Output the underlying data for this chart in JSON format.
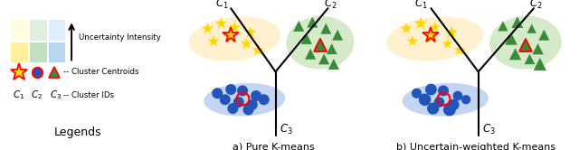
{
  "star_color": "#ffd700",
  "triangle_color": "#3a8a3a",
  "circle_color": "#2255bb",
  "c1_fill": "#ffd98060",
  "c2_fill": "#90c97060",
  "c3_fill": "#6090e060",
  "title_a": "a) Pure K-means",
  "title_b": "b) Uncertain-weighted K-means",
  "legend_title": "Legends",
  "uncertainty_label": "Uncertainty Intensity",
  "centroid_label": "-- Cluster Centroids",
  "clusterid_label": "-- Cluster IDs",
  "sq_colors": [
    [
      "#fffde0",
      "#dff0df",
      "#ddeeff"
    ],
    [
      "#fff0a0",
      "#c0e0c0",
      "#b8d8f0"
    ]
  ]
}
